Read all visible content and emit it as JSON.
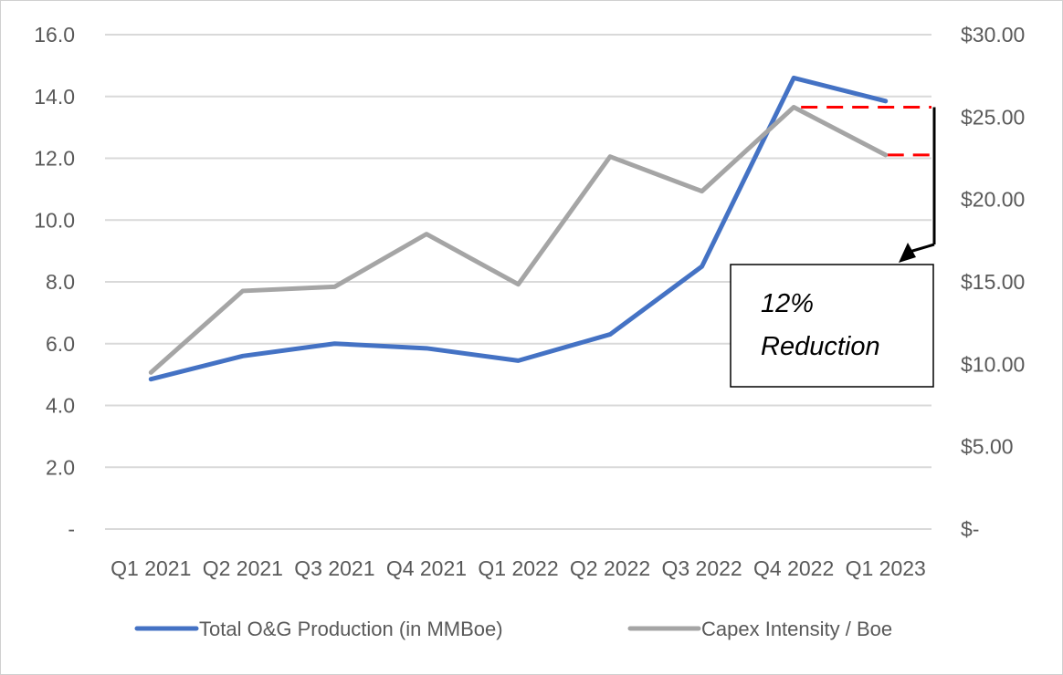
{
  "chart_data": {
    "type": "line",
    "title": "",
    "xlabel": "",
    "ylabel": "",
    "y2label": "",
    "categories": [
      "Q1 2021",
      "Q2 2021",
      "Q3 2021",
      "Q4 2021",
      "Q1 2022",
      "Q2 2022",
      "Q3 2022",
      "Q4 2022",
      "Q1 2023"
    ],
    "ylim": [
      0,
      16
    ],
    "y2lim": [
      0,
      30
    ],
    "grid": true,
    "legend_position": "bottom",
    "series": [
      {
        "name": "Total O&G Production (in MMBoe)",
        "axis": "left",
        "color": "#4472C4",
        "values": [
          4.85,
          5.6,
          6.0,
          5.85,
          5.45,
          6.3,
          8.5,
          14.6,
          13.85
        ]
      },
      {
        "name": "Capex Intensity / Boe",
        "axis": "right",
        "color": "#A5A5A5",
        "values": [
          9.5,
          14.45,
          14.7,
          17.9,
          14.85,
          22.6,
          20.5,
          25.6,
          22.7
        ]
      }
    ],
    "y_ticks": [
      "-",
      "2.0",
      "4.0",
      "6.0",
      "8.0",
      "10.0",
      "12.0",
      "14.0",
      "16.0"
    ],
    "y2_ticks": [
      "$-",
      "$5.00",
      "$10.00",
      "$15.00",
      "$20.00",
      "$25.00",
      "$30.00"
    ],
    "x_tick_labels": [
      "Q1 2021",
      "Q2 2021",
      "Q3 2021",
      "Q4 2021",
      "Q1 2022",
      "Q2 2022",
      "Q3 2022",
      "Q4 2022",
      "Q1 2023"
    ],
    "annotation": {
      "line1": "12%",
      "line2": "Reduction",
      "from_value": 25.6,
      "to_value": 22.7,
      "guide_color": "#FF0000"
    }
  }
}
